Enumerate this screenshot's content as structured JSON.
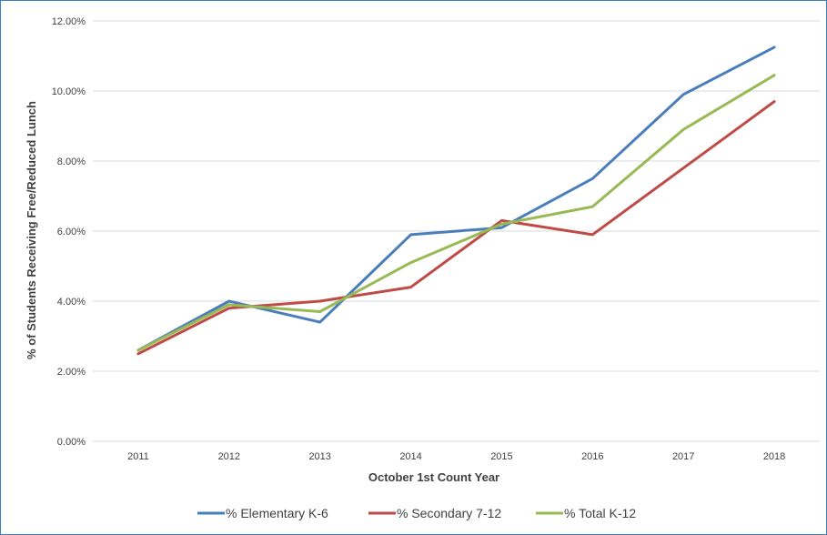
{
  "chart_data": {
    "type": "line",
    "title": "",
    "xlabel": "October 1st Count Year",
    "ylabel": "% of Students Receiving Free/Reduced Lunch",
    "x": [
      "2011",
      "2012",
      "2013",
      "2014",
      "2015",
      "2016",
      "2017",
      "2018"
    ],
    "ylim": [
      0,
      12
    ],
    "yticks": [
      "0.00%",
      "2.00%",
      "4.00%",
      "6.00%",
      "8.00%",
      "10.00%",
      "12.00%"
    ],
    "ytick_values": [
      0,
      2,
      4,
      6,
      8,
      10,
      12
    ],
    "grid": true,
    "legend_position": "bottom",
    "series": [
      {
        "name": "% Elementary K-6",
        "color": "#4a7ebb",
        "values": [
          2.6,
          4.0,
          3.4,
          5.9,
          6.1,
          7.5,
          9.9,
          11.25
        ]
      },
      {
        "name": "% Secondary 7-12",
        "color": "#be4b48",
        "values": [
          2.5,
          3.8,
          4.0,
          4.4,
          6.3,
          5.9,
          7.8,
          9.7
        ]
      },
      {
        "name": "% Total K-12",
        "color": "#98b954",
        "values": [
          2.6,
          3.9,
          3.7,
          5.1,
          6.2,
          6.7,
          8.9,
          10.45
        ]
      }
    ]
  }
}
